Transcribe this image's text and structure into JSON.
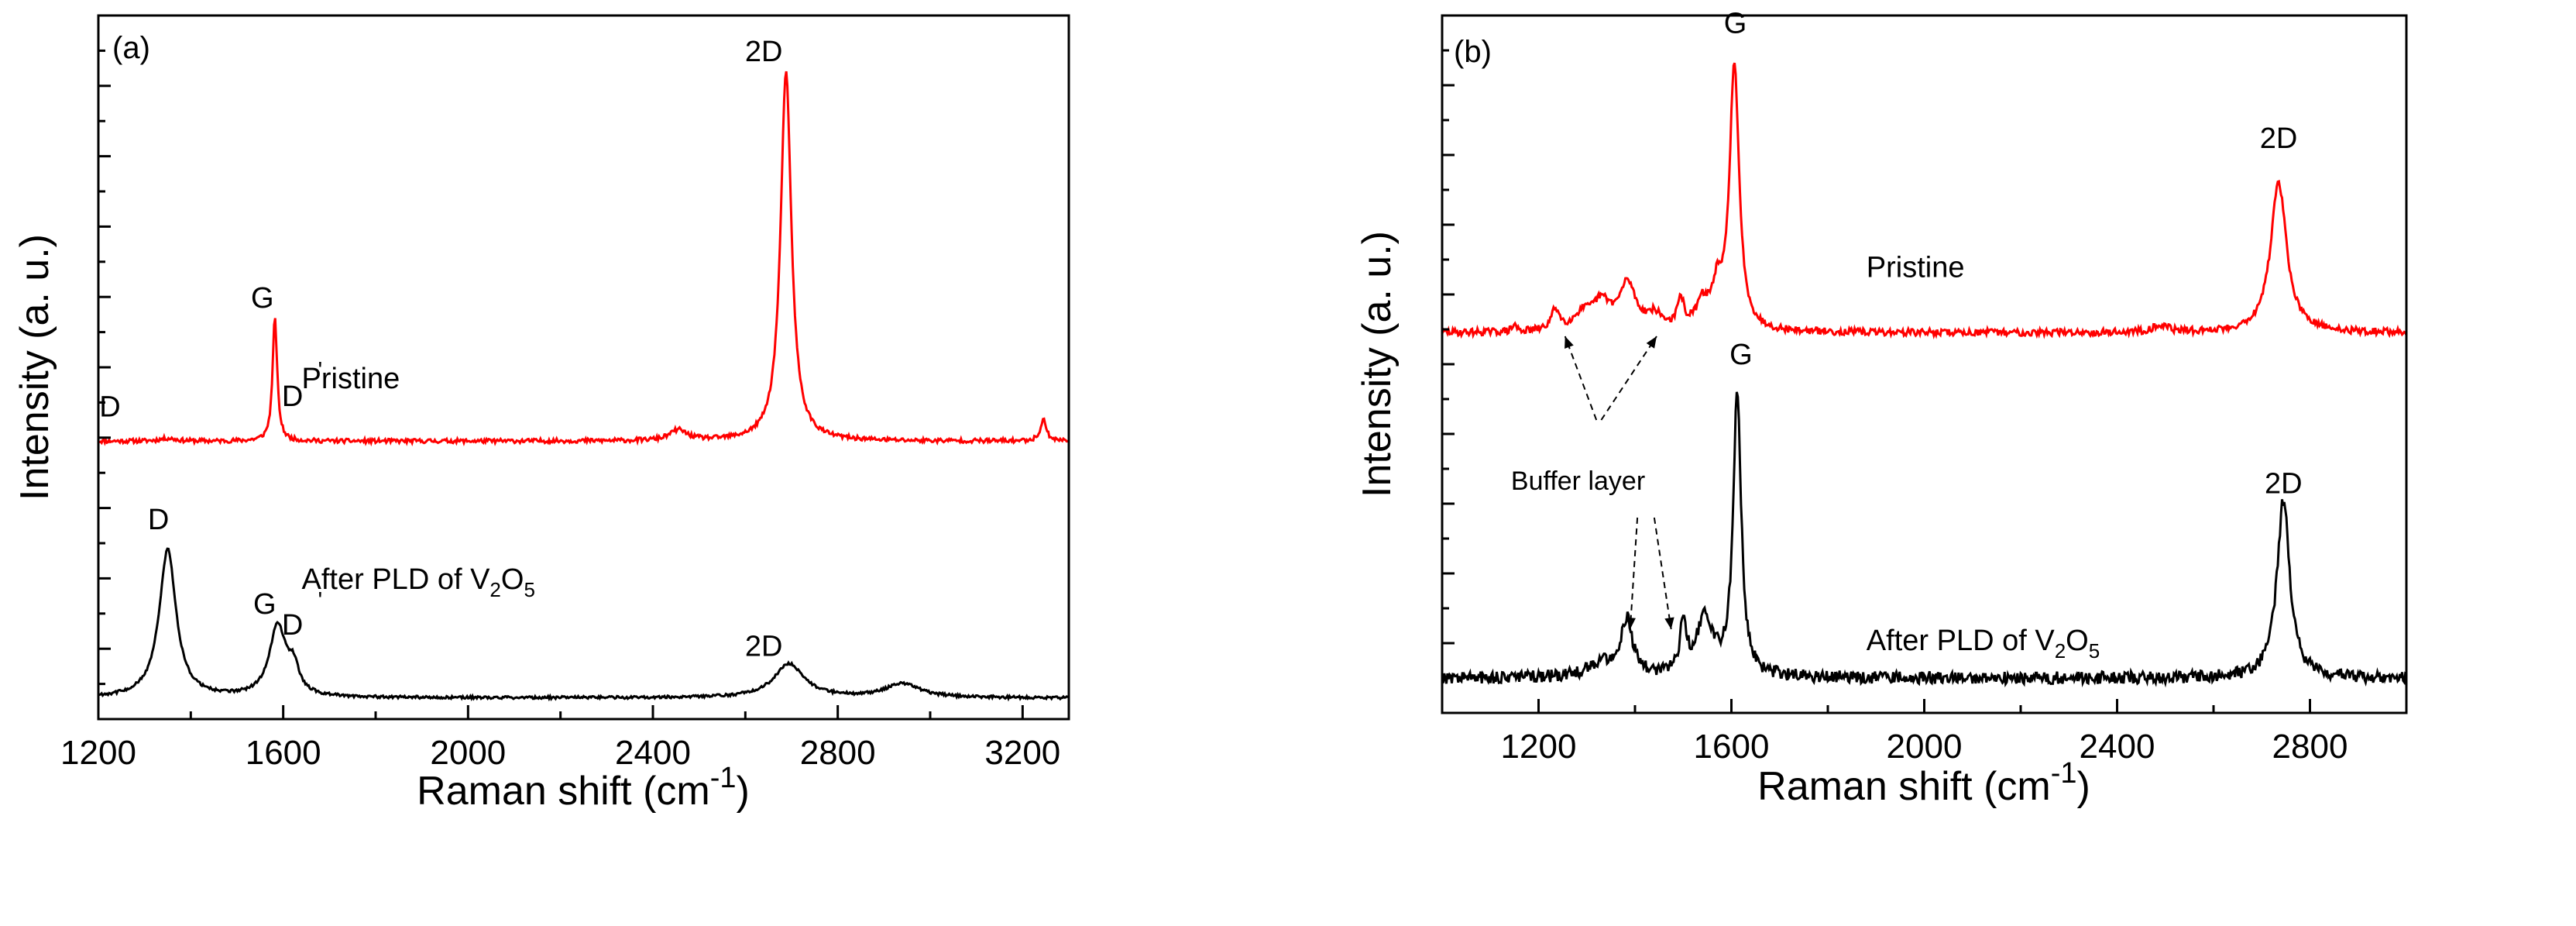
{
  "chart_data": [
    {
      "type": "line",
      "panel_label": "(a)",
      "xlabel": "Raman shift (cm",
      "xlabel_sup": "-1",
      "xlabel_close": ")",
      "ylabel": "Intensity (a. u.)",
      "xlim": [
        1200,
        3300
      ],
      "ylim": [
        0,
        1
      ],
      "xticks": [
        "1200",
        "1600",
        "2000",
        "2400",
        "2800",
        "3200"
      ],
      "xtick_values": [
        1200,
        1600,
        2000,
        2400,
        2800,
        3200
      ],
      "series": [
        {
          "name": "Pristine",
          "color": "#ff0000",
          "baseline": 0.395,
          "noise": 0.003,
          "peaks": [
            {
              "x": 1350,
              "height": 0.004,
              "width": 20
            },
            {
              "x": 1582,
              "height": 0.175,
              "width": 6
            },
            {
              "x": 2455,
              "height": 0.015,
              "width": 22
            },
            {
              "x": 2688,
              "height": 0.525,
              "width": 14
            },
            {
              "x": 3245,
              "height": 0.03,
              "width": 8
            }
          ]
        },
        {
          "name": "After PLD of V2O5",
          "color": "#000000",
          "baseline": 0.03,
          "noise": 0.002,
          "peaks": [
            {
              "x": 1350,
              "height": 0.21,
              "width": 22
            },
            {
              "x": 1588,
              "height": 0.1,
              "width": 22
            },
            {
              "x": 1622,
              "height": 0.035,
              "width": 14
            },
            {
              "x": 2695,
              "height": 0.048,
              "width": 40
            },
            {
              "x": 2940,
              "height": 0.02,
              "width": 45
            }
          ]
        }
      ],
      "annotations": {
        "pristine": {
          "text": "Pristine",
          "x": 1640,
          "y": 0.47
        },
        "after_main": {
          "text": "After PLD of V",
          "x": 1640,
          "y": 0.185
        },
        "after_sub1": "2",
        "after_o": "O",
        "after_sub2": "5",
        "peak_labels": [
          {
            "text": "D",
            "x": 1225,
            "y": 0.43
          },
          {
            "text": "G",
            "x": 1555,
            "y": 0.585
          },
          {
            "text": "D",
            "x": 1620,
            "y": 0.445
          },
          {
            "text": "2D",
            "x": 2640,
            "y": 0.935
          },
          {
            "text": "D",
            "x": 1330,
            "y": 0.27
          },
          {
            "text": "G",
            "x": 1560,
            "y": 0.15
          },
          {
            "text": "D",
            "x": 1620,
            "y": 0.12
          },
          {
            "text": "2D",
            "x": 2640,
            "y": 0.09
          }
        ],
        "primes": [
          {
            "text": "'",
            "x": 1680,
            "y": 0.485
          },
          {
            "text": "'",
            "x": 1680,
            "y": 0.158
          }
        ]
      }
    },
    {
      "type": "line",
      "panel_label": "(b)",
      "xlabel": "Raman shift (cm",
      "xlabel_sup": "-1",
      "xlabel_close": ")",
      "ylabel": "Intensity (a. u.)",
      "xlim": [
        1000,
        3000
      ],
      "ylim": [
        0,
        1
      ],
      "xticks": [
        "1200",
        "1600",
        "2000",
        "2400",
        "2800"
      ],
      "xtick_values": [
        1200,
        1600,
        2000,
        2400,
        2800
      ],
      "series": [
        {
          "name": "Pristine",
          "color": "#ff0000",
          "baseline": 0.545,
          "noise": 0.005,
          "peaks": [
            {
              "x": 1150,
              "height": 0.01,
              "width": 5
            },
            {
              "x": 1235,
              "height": 0.03,
              "width": 10
            },
            {
              "x": 1290,
              "height": 0.02,
              "width": 20
            },
            {
              "x": 1330,
              "height": 0.04,
              "width": 25
            },
            {
              "x": 1385,
              "height": 0.065,
              "width": 20
            },
            {
              "x": 1440,
              "height": 0.02,
              "width": 20
            },
            {
              "x": 1495,
              "height": 0.04,
              "width": 8
            },
            {
              "x": 1540,
              "height": 0.035,
              "width": 15
            },
            {
              "x": 1570,
              "height": 0.05,
              "width": 12
            },
            {
              "x": 1606,
              "height": 0.38,
              "width": 12
            },
            {
              "x": 2490,
              "height": 0.01,
              "width": 20
            },
            {
              "x": 2735,
              "height": 0.215,
              "width": 20
            }
          ]
        },
        {
          "name": "After PLD of V2O5",
          "color": "#000000",
          "baseline": 0.05,
          "noise": 0.009,
          "peaks": [
            {
              "x": 1330,
              "height": 0.02,
              "width": 30
            },
            {
              "x": 1383,
              "height": 0.08,
              "width": 15
            },
            {
              "x": 1500,
              "height": 0.07,
              "width": 8
            },
            {
              "x": 1545,
              "height": 0.08,
              "width": 22
            },
            {
              "x": 1612,
              "height": 0.405,
              "width": 10
            },
            {
              "x": 2745,
              "height": 0.255,
              "width": 16
            }
          ]
        }
      ],
      "annotations": {
        "pristine": {
          "text": "Pristine",
          "x": 1880,
          "y": 0.625
        },
        "after_main": {
          "text": "After PLD of V",
          "x": 1880,
          "y": 0.09
        },
        "after_sub1": "2",
        "after_o": "O",
        "after_sub2": "5",
        "buffer": {
          "text": "Buffer layer",
          "x": 1282,
          "y": 0.32
        },
        "peak_labels": [
          {
            "text": "G",
            "x": 1608,
            "y": 0.975
          },
          {
            "text": "2D",
            "x": 2735,
            "y": 0.81
          },
          {
            "text": "G",
            "x": 1620,
            "y": 0.5
          },
          {
            "text": "2D",
            "x": 2745,
            "y": 0.315
          }
        ]
      }
    }
  ]
}
